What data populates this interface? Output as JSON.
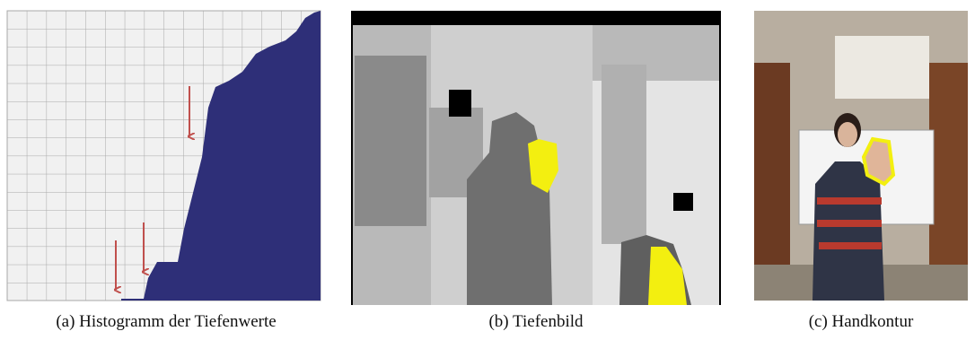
{
  "figure": {
    "panels": [
      {
        "caption": "(a) Histogramm der Tiefenwerte"
      },
      {
        "caption": "(b) Tiefenbild"
      },
      {
        "caption": "(c) Handkontur"
      }
    ]
  }
}
